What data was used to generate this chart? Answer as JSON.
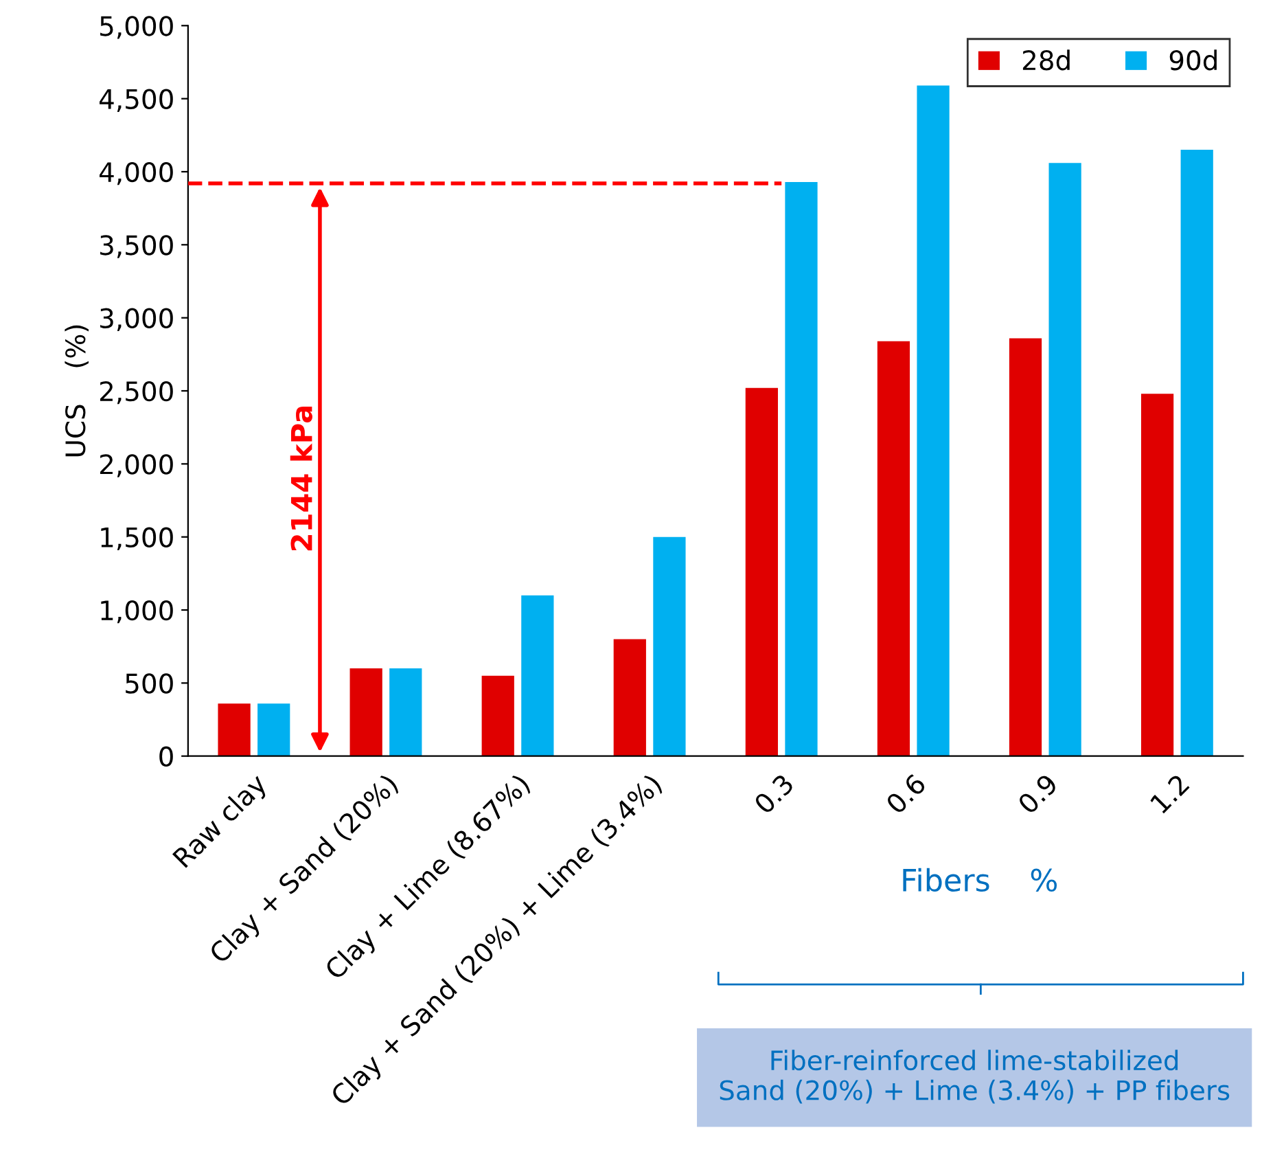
{
  "chart_data": {
    "type": "bar",
    "ylabel": "UCS    (%)",
    "xlabel": "Fibers    %",
    "categories": [
      "Raw clay",
      "Clay + Sand (20%)",
      "Clay + Lime (8.67%)",
      "Clay + Sand (20%) + Lime (3.4%)",
      "0.3",
      "0.6",
      "0.9",
      "1.2"
    ],
    "series": [
      {
        "name": "28d",
        "color": "#e00000",
        "values": [
          360,
          600,
          550,
          800,
          2520,
          2840,
          2860,
          2480
        ]
      },
      {
        "name": "90d",
        "color": "#00b0f0",
        "values": [
          360,
          600,
          1100,
          1500,
          3930,
          4590,
          4060,
          4150
        ]
      }
    ],
    "ylim": [
      0,
      5000
    ],
    "yticks": [
      {
        "value": 0,
        "label": "0"
      },
      {
        "value": 500,
        "label": "500"
      },
      {
        "value": 1000,
        "label": "1,000"
      },
      {
        "value": 1500,
        "label": "1,500"
      },
      {
        "value": 2000,
        "label": "2,000"
      },
      {
        "value": 2500,
        "label": "2,500"
      },
      {
        "value": 3000,
        "label": "3,000"
      },
      {
        "value": 3500,
        "label": "3,500"
      },
      {
        "value": 4000,
        "label": "4,000"
      },
      {
        "value": 4500,
        "label": "4,500"
      },
      {
        "value": 5000,
        "label": "5,000"
      }
    ],
    "ref_lines": [
      {
        "axis": "y",
        "value": 3920,
        "color": "#ff0000",
        "line_style": "dashed"
      }
    ],
    "annotations": [
      "2144 kPa",
      "Fiber-reinforced lime-stabilized\nSand (20%) + Lime (3.4%) + PP fibers"
    ],
    "grid": false,
    "legend": "top right"
  }
}
